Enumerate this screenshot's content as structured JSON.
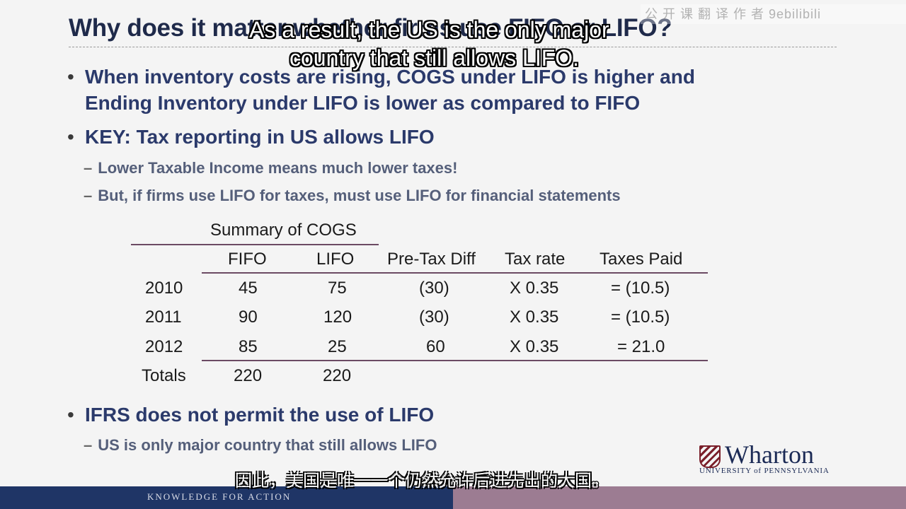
{
  "slide": {
    "title": "Why does it matter whether firms use FIFO or LIFO?",
    "bullets": [
      {
        "text_line1": "When inventory costs are rising, COGS under LIFO is higher and",
        "text_line2": "Ending Inventory under LIFO is lower as compared to FIFO"
      },
      {
        "text_line1": "KEY: Tax reporting in US allows LIFO"
      },
      {
        "text_line1": "IFRS does not permit the use of LIFO"
      }
    ],
    "subbullets": [
      "Lower Taxable Income means much lower taxes!",
      "But, if firms use LIFO for taxes, must use LIFO for financial statements",
      "US is only major country that still allows LIFO"
    ],
    "table": {
      "group_header": "Summary of COGS",
      "headers": [
        "FIFO",
        "LIFO",
        "Pre-Tax Diff",
        "Tax rate",
        "Taxes Paid"
      ],
      "rows": [
        {
          "year": "2010",
          "fifo": "45",
          "lifo": "75",
          "diff": "(30)",
          "rate": "X 0.35",
          "taxes": "= (10.5)"
        },
        {
          "year": "2011",
          "fifo": "90",
          "lifo": "120",
          "diff": "(30)",
          "rate": "X 0.35",
          "taxes": "= (10.5)"
        },
        {
          "year": "2012",
          "fifo": "85",
          "lifo": "25",
          "diff": "60",
          "rate": "X 0.35",
          "taxes": "= 21.0"
        }
      ],
      "totals": {
        "label": "Totals",
        "fifo": "220",
        "lifo": "220"
      }
    }
  },
  "captions": {
    "en_line1": "As a result, the US is the only major",
    "en_line2": "country that still allows LIFO.",
    "zh": "因此，美国是唯一一个仍然允许后进先出的大国。"
  },
  "watermark": "公 开 课 翻 译 作 者 9ebilibili",
  "logo": {
    "name": "Wharton",
    "subtitle": "UNIVERSITY of PENNSYLVANIA"
  },
  "footer": {
    "tagline": "KNOWLEDGE FOR ACTION"
  }
}
